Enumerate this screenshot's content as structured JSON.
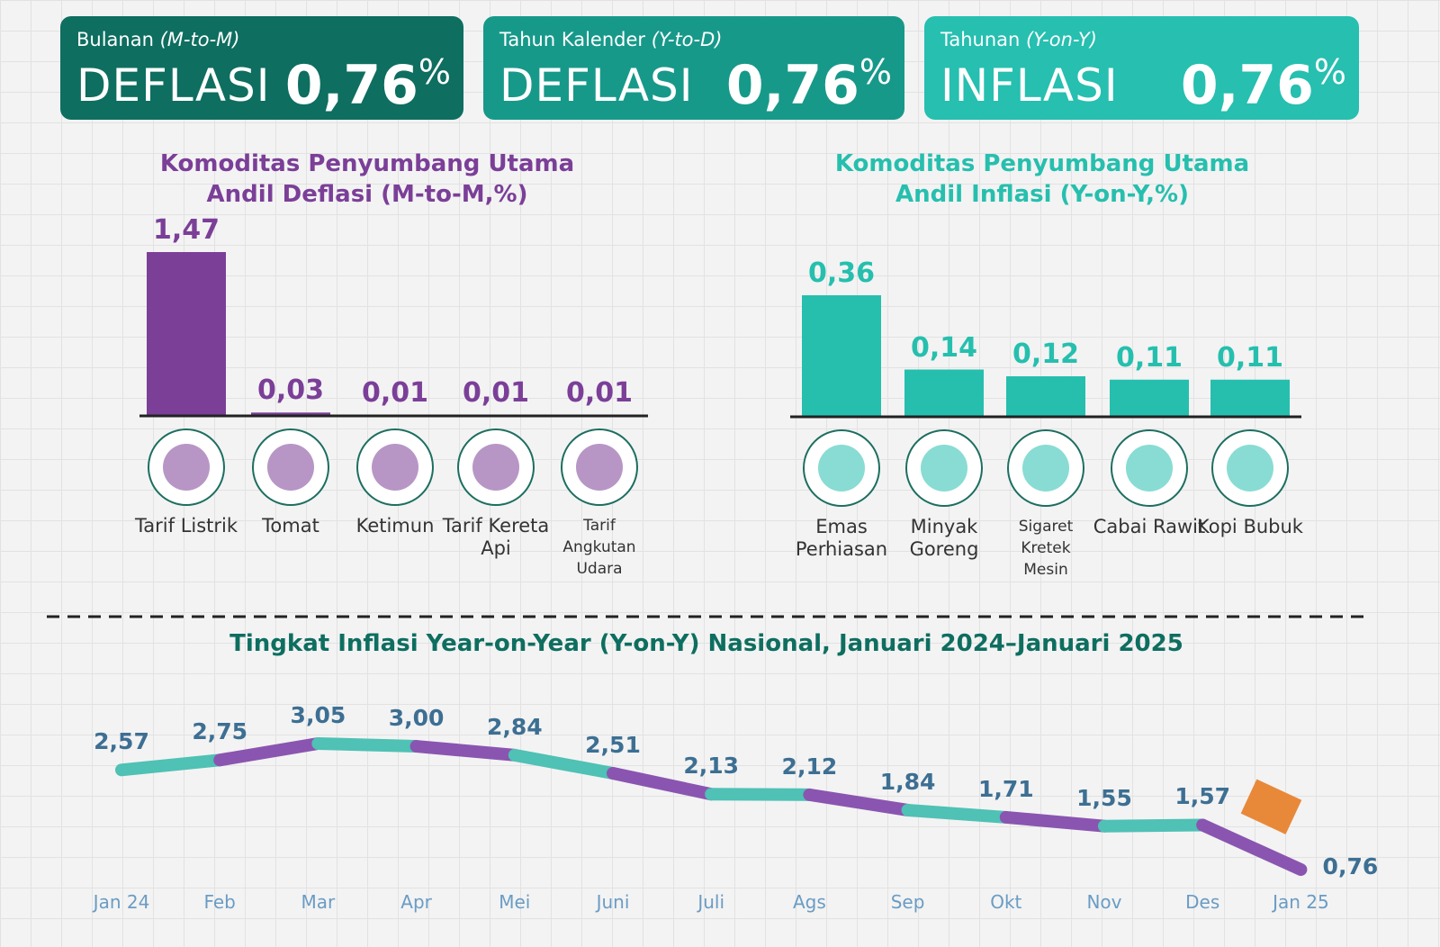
{
  "cards": [
    {
      "label": "Bulanan",
      "label_note": "(M-to-M)",
      "status": "DEFLASI",
      "value": "0,76",
      "unit": "%"
    },
    {
      "label": "Tahun Kalender",
      "label_note": "(Y-to-D)",
      "status": "DEFLASI",
      "value": "0,76",
      "unit": "%"
    },
    {
      "label": "Tahunan",
      "label_note": "(Y-on-Y)",
      "status": "INFLASI",
      "value": "0,76",
      "unit": "%"
    }
  ],
  "chart_data": [
    {
      "type": "bar",
      "title": [
        "Komoditas Penyumbang Utama",
        "Andil Deflasi (M-to-M,%)"
      ],
      "color": "#7b3f98",
      "categories": [
        "Tarif Listrik",
        "Tomat",
        "Ketimun",
        "Tarif Kereta Api",
        "Tarif Angkutan Udara"
      ],
      "values": [
        1.47,
        0.03,
        0.01,
        0.01,
        0.01
      ],
      "value_labels": [
        "1,47",
        "0,03",
        "0,01",
        "0,01",
        "0,01"
      ]
    },
    {
      "type": "bar",
      "title": [
        "Komoditas Penyumbang Utama",
        "Andil Inflasi (Y-on-Y,%)"
      ],
      "color": "#26bfae",
      "categories": [
        "Emas Perhiasan",
        "Minyak Goreng",
        "Sigaret Kretek Mesin",
        "Cabai Rawit",
        "Kopi Bubuk"
      ],
      "values": [
        0.36,
        0.14,
        0.12,
        0.11,
        0.11
      ],
      "value_labels": [
        "0,36",
        "0,14",
        "0,12",
        "0,11",
        "0,11"
      ]
    },
    {
      "type": "line",
      "title": "Tingkat Inflasi Year-on-Year (Y-on-Y) Nasional, Januari 2024–Januari 2025",
      "color": [
        "#4fc1b5",
        "#8a55b0"
      ],
      "categories": [
        "Jan 24",
        "Feb",
        "Mar",
        "Apr",
        "Mei",
        "Juni",
        "Juli",
        "Ags",
        "Sep",
        "Okt",
        "Nov",
        "Des",
        "Jan 25"
      ],
      "values": [
        2.57,
        2.75,
        3.05,
        3.0,
        2.84,
        2.51,
        2.13,
        2.12,
        1.84,
        1.71,
        1.55,
        1.57,
        0.76
      ],
      "value_labels": [
        "2,57",
        "2,75",
        "3,05",
        "3,00",
        "2,84",
        "2,51",
        "2,13",
        "2,12",
        "1,84",
        "1,71",
        "1,55",
        "1,57",
        "0,76"
      ]
    }
  ]
}
